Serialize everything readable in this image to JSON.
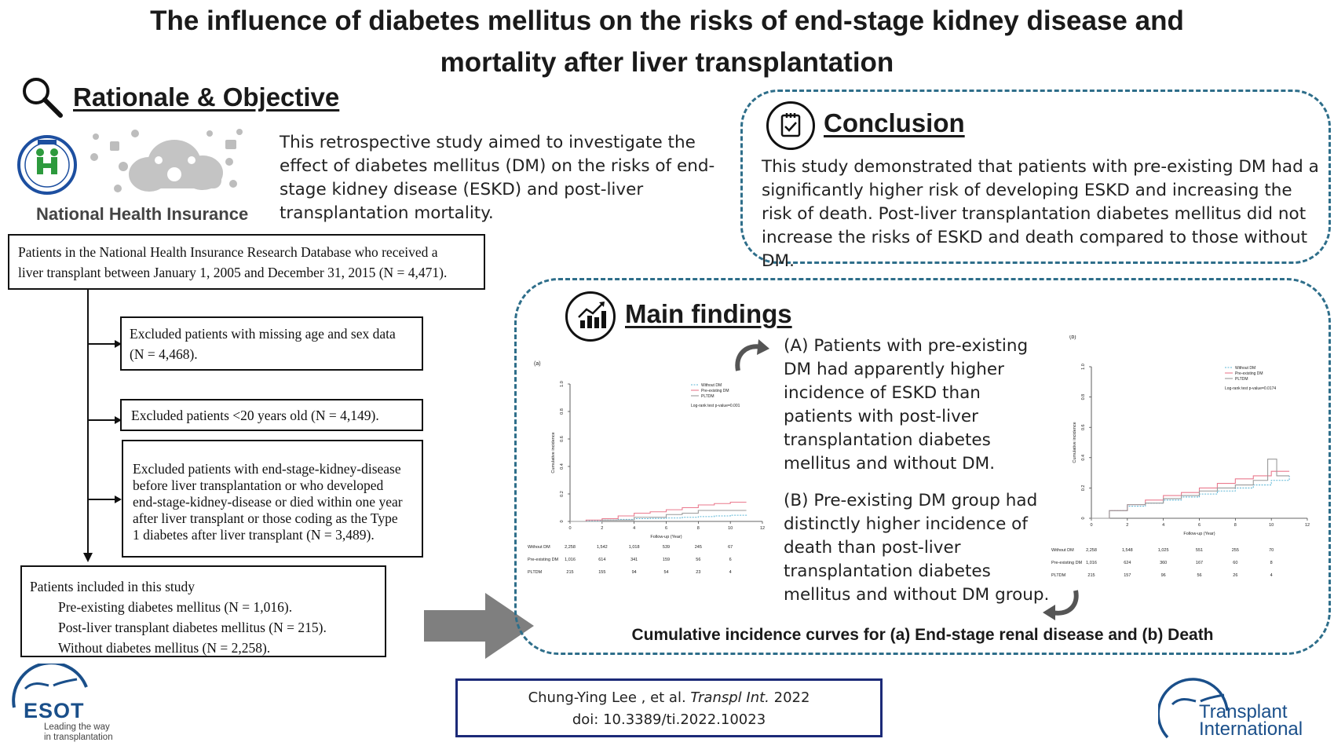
{
  "title": {
    "line1": "The influence of diabetes mellitus on the risks of end-stage kidney disease and",
    "line2": "mortality after liver transplantation"
  },
  "rationale": {
    "heading": "Rationale & Objective",
    "icon": "magnifier-icon",
    "nhi_label": "National Health Insurance",
    "text": "This retrospective study aimed to investigate the effect of diabetes mellitus (DM) on the risks of end-stage kidney disease (ESKD) and post-liver transplantation mortality."
  },
  "conclusion": {
    "heading": "Conclusion",
    "icon": "checklist-icon",
    "text": "This study demonstrated that patients with pre-existing DM had a significantly higher risk of developing ESKD and increasing the risk of death. Post-liver transplantation diabetes mellitus did not increase the risks of ESKD and death compared to those without DM."
  },
  "flowchart": {
    "top": {
      "line1": "Patients in the National Health Insurance Research Database who received a",
      "line2": "liver transplant between January 1, 2005 and December 31, 2015 (N = 4,471)."
    },
    "excl1": {
      "line1": "Excluded patients with missing age and sex data",
      "line2": "(N = 4,468)."
    },
    "excl2": "Excluded patients <20 years old (N = 4,149).",
    "excl3": {
      "lines": [
        "Excluded patients with end-stage-kidney-disease",
        "before liver transplantation or who developed",
        "end-stage-kidney-disease or died within one year",
        "after liver transplant or those coding as the Type",
        "1 diabetes after liver transplant (N = 3,489)."
      ]
    },
    "included": {
      "header": "Patients included in this study",
      "lines": [
        "Pre-existing diabetes mellitus (N = 1,016).",
        "Post-liver transplant diabetes mellitus (N = 215).",
        "Without diabetes mellitus (N = 2,258)."
      ]
    }
  },
  "main_findings": {
    "heading": "Main findings",
    "icon": "bar-chart-icon",
    "finding_a": "(A) Patients with pre-existing DM had apparently higher incidence of ESKD than patients with post-liver transplantation diabetes mellitus and without DM.",
    "finding_b": "(B) Pre-existing DM group had distinctly higher incidence of death than post-liver transplantation diabetes mellitus and without DM group.",
    "caption": "Cumulative incidence curves for (a) End-stage renal disease and (b) Death"
  },
  "colors": {
    "dashed_border": "#2e6e8a",
    "citation_border": "#1c2a78",
    "arrow": "#7f7f7f",
    "without_dm": "#5fb7d6",
    "pre_existing_dm": "#ea7a8e",
    "pltdm": "#9a9a9a"
  },
  "chart_data": [
    {
      "type": "line",
      "panel_label": "(a)",
      "xlabel": "Follow-up (Year)",
      "ylabel": "Cumulative incidence",
      "xlim": [
        0,
        12
      ],
      "ylim": [
        0,
        1.0
      ],
      "x_ticks": [
        "0",
        "2",
        "4",
        "6",
        "8",
        "10",
        "12"
      ],
      "y_ticks": [
        "0",
        "0.2",
        "0.4",
        "0.6",
        "0.8",
        "1.0"
      ],
      "legend_position": "top-right",
      "annotation": "Log-rank test p-value=0.001",
      "series": [
        {
          "name": "Without DM",
          "color": "#5fb7d6",
          "points": [
            [
              0,
              0
            ],
            [
              1,
              0.005
            ],
            [
              2,
              0.01
            ],
            [
              3,
              0.015
            ],
            [
              4,
              0.02
            ],
            [
              5,
              0.022
            ],
            [
              6,
              0.025
            ],
            [
              7,
              0.03
            ],
            [
              8,
              0.035
            ],
            [
              9,
              0.04
            ],
            [
              10,
              0.045
            ],
            [
              11,
              0.05
            ]
          ]
        },
        {
          "name": "Pre-existing DM",
          "color": "#ea7a8e",
          "points": [
            [
              0,
              0
            ],
            [
              1,
              0.01
            ],
            [
              2,
              0.02
            ],
            [
              3,
              0.04
            ],
            [
              4,
              0.06
            ],
            [
              5,
              0.07
            ],
            [
              6,
              0.085
            ],
            [
              7,
              0.1
            ],
            [
              8,
              0.12
            ],
            [
              9,
              0.13
            ],
            [
              10,
              0.14
            ],
            [
              11,
              0.14
            ]
          ]
        },
        {
          "name": "PLTDM",
          "color": "#9a9a9a",
          "points": [
            [
              0,
              0
            ],
            [
              2,
              0.01
            ],
            [
              4,
              0.03
            ],
            [
              6,
              0.05
            ],
            [
              7,
              0.06
            ],
            [
              8,
              0.08
            ],
            [
              9,
              0.08
            ],
            [
              10,
              0.08
            ],
            [
              11,
              0.08
            ]
          ]
        }
      ],
      "risk_table": {
        "rows": [
          {
            "label": "Without DM",
            "values": [
              "2,258",
              "1,542",
              "1,018",
              "539",
              "245",
              "67"
            ]
          },
          {
            "label": "Pre-existing DM",
            "values": [
              "1,016",
              "614",
              "341",
              "159",
              "56",
              "6"
            ]
          },
          {
            "label": "PLTDM",
            "values": [
              "215",
              "155",
              "94",
              "54",
              "23",
              "4"
            ]
          }
        ]
      }
    },
    {
      "type": "line",
      "panel_label": "(b)",
      "xlabel": "Follow-up (Year)",
      "ylabel": "Cumulative incidence",
      "xlim": [
        0,
        12
      ],
      "ylim": [
        0,
        1.0
      ],
      "x_ticks": [
        "0",
        "2",
        "4",
        "6",
        "8",
        "10",
        "12"
      ],
      "y_ticks": [
        "0",
        "0.2",
        "0.4",
        "0.6",
        "0.8",
        "1.0"
      ],
      "legend_position": "top-right",
      "annotation": "Log-rank test p-value=0.0174",
      "series": [
        {
          "name": "Without DM",
          "color": "#5fb7d6",
          "points": [
            [
              0,
              0
            ],
            [
              1,
              0.05
            ],
            [
              2,
              0.08
            ],
            [
              3,
              0.1
            ],
            [
              4,
              0.12
            ],
            [
              5,
              0.14
            ],
            [
              6,
              0.16
            ],
            [
              7,
              0.18
            ],
            [
              8,
              0.2
            ],
            [
              9,
              0.22
            ],
            [
              10,
              0.25
            ],
            [
              11,
              0.28
            ]
          ]
        },
        {
          "name": "Pre-existing DM",
          "color": "#ea7a8e",
          "points": [
            [
              0,
              0
            ],
            [
              1,
              0.05
            ],
            [
              2,
              0.09
            ],
            [
              3,
              0.12
            ],
            [
              4,
              0.15
            ],
            [
              5,
              0.17
            ],
            [
              6,
              0.2
            ],
            [
              7,
              0.23
            ],
            [
              8,
              0.26
            ],
            [
              9,
              0.28
            ],
            [
              10,
              0.31
            ],
            [
              11,
              0.31
            ]
          ]
        },
        {
          "name": "PLTDM",
          "color": "#9a9a9a",
          "points": [
            [
              0,
              0
            ],
            [
              1,
              0.05
            ],
            [
              2,
              0.09
            ],
            [
              3,
              0.1
            ],
            [
              4,
              0.13
            ],
            [
              5,
              0.15
            ],
            [
              6,
              0.18
            ],
            [
              7,
              0.2
            ],
            [
              8,
              0.22
            ],
            [
              9,
              0.25
            ],
            [
              9.8,
              0.39
            ],
            [
              10.3,
              0.28
            ],
            [
              11,
              0.28
            ]
          ]
        }
      ],
      "risk_table": {
        "rows": [
          {
            "label": "Without DM",
            "values": [
              "2,258",
              "1,548",
              "1,025",
              "551",
              "255",
              "70"
            ]
          },
          {
            "label": "Pre-existing DM",
            "values": [
              "1,016",
              "624",
              "360",
              "167",
              "60",
              "8"
            ]
          },
          {
            "label": "PLTDM",
            "values": [
              "215",
              "157",
              "96",
              "56",
              "26",
              "4"
            ]
          }
        ]
      }
    }
  ],
  "citation": {
    "authors": "Chung-Ying Lee , et al.",
    "journal": "Transpl Int.",
    "year": "2022",
    "doi": "doi:  10.3389/ti.2022.10023"
  },
  "logos": {
    "esot": {
      "name": "ESOT",
      "tagline1": "Leading the way",
      "tagline2": "in transplantation"
    },
    "ti": {
      "line1": "Transplant",
      "line2": "International"
    }
  }
}
